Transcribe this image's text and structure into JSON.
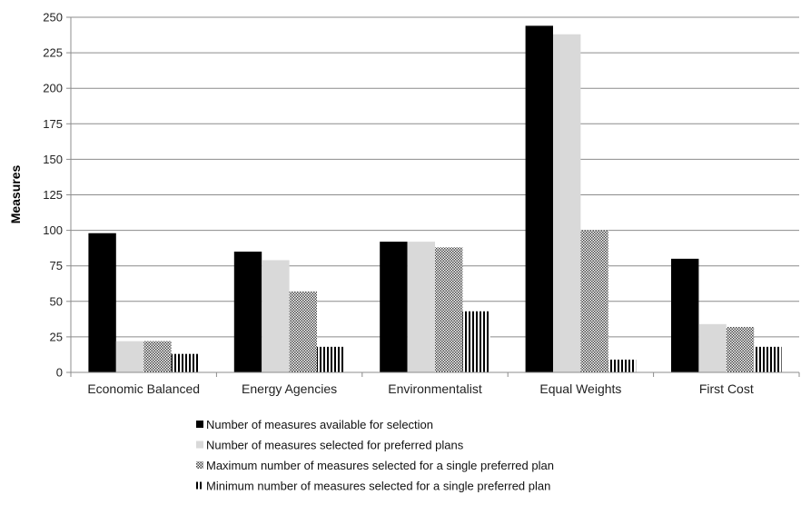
{
  "chart_data": {
    "type": "bar",
    "title": "",
    "xlabel": "",
    "ylabel": "Measures",
    "ylim": [
      0,
      250
    ],
    "yticks": [
      0,
      25,
      50,
      75,
      100,
      125,
      150,
      175,
      200,
      225,
      250
    ],
    "grid": true,
    "legend_position": "bottom",
    "categories": [
      "Economic Balanced",
      "Energy Agencies",
      "Environmentalist",
      "Equal Weights",
      "First Cost"
    ],
    "series": [
      {
        "name": "Number of measures available for selection",
        "values": [
          98,
          85,
          92,
          244,
          80
        ],
        "fill": "#000000",
        "pattern": "solid"
      },
      {
        "name": "Number of measures selected for preferred plans",
        "values": [
          22,
          79,
          92,
          238,
          34
        ],
        "fill": "#d9d9d9",
        "pattern": "solid"
      },
      {
        "name": "Maximum number of measures selected for a single preferred plan",
        "values": [
          22,
          57,
          88,
          100,
          32
        ],
        "fill": "#7f7f7f",
        "pattern": "checker"
      },
      {
        "name": "Minimum number of measures selected for a single preferred plan",
        "values": [
          13,
          18,
          43,
          9,
          18
        ],
        "fill": "#000000",
        "pattern": "vstripes"
      }
    ]
  }
}
